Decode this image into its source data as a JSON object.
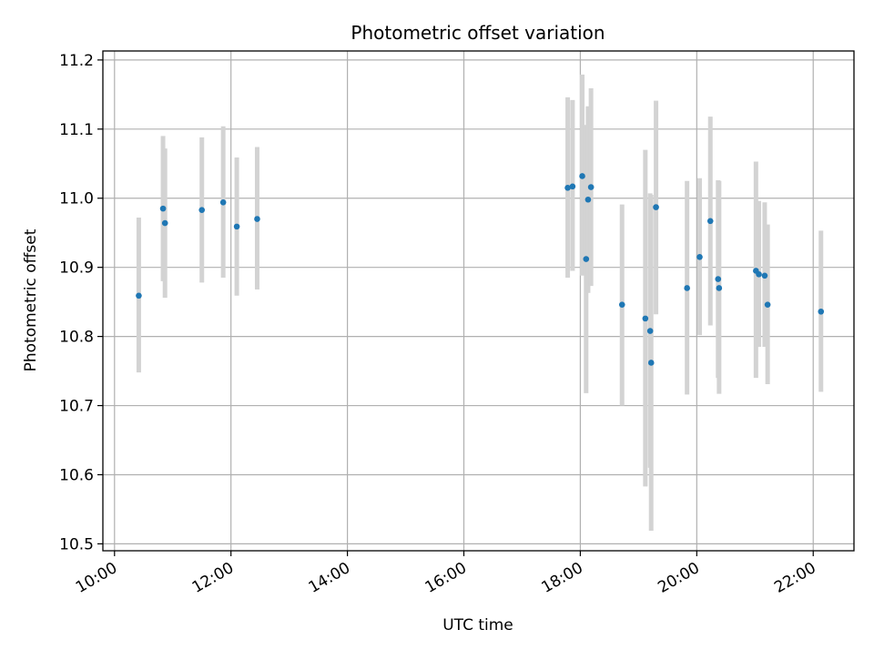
{
  "chart_data": {
    "type": "scatter",
    "title": "Photometric offset variation",
    "xlabel": "UTC time",
    "ylabel": "Photometric offset",
    "x_ticks": [
      "10:00",
      "12:00",
      "14:00",
      "16:00",
      "18:00",
      "20:00",
      "22:00"
    ],
    "x_tick_hours": [
      10,
      12,
      14,
      16,
      18,
      20,
      22
    ],
    "y_ticks": [
      "10.5",
      "10.6",
      "10.7",
      "10.8",
      "10.9",
      "11.0",
      "11.1",
      "11.2"
    ],
    "y_tick_values": [
      10.5,
      10.6,
      10.7,
      10.8,
      10.9,
      11.0,
      11.1,
      11.2
    ],
    "xlim_hours": [
      9.8,
      22.7
    ],
    "ylim": [
      10.49,
      11.213
    ],
    "grid": true,
    "colors": {
      "point": "#1f77b4",
      "error_bar": "#d3d3d3",
      "grid": "#b0b0b0"
    },
    "points": [
      {
        "t": "10:25",
        "y": 10.859,
        "lo": 10.748,
        "hi": 10.972
      },
      {
        "t": "10:50",
        "y": 10.985,
        "lo": 10.88,
        "hi": 11.09
      },
      {
        "t": "10:52",
        "y": 10.964,
        "lo": 10.856,
        "hi": 11.072
      },
      {
        "t": "11:30",
        "y": 10.983,
        "lo": 10.878,
        "hi": 11.088
      },
      {
        "t": "11:52",
        "y": 10.994,
        "lo": 10.885,
        "hi": 11.104
      },
      {
        "t": "12:06",
        "y": 10.959,
        "lo": 10.859,
        "hi": 11.059
      },
      {
        "t": "12:27",
        "y": 10.97,
        "lo": 10.868,
        "hi": 11.074
      },
      {
        "t": "17:47",
        "y": 11.015,
        "lo": 10.885,
        "hi": 11.146
      },
      {
        "t": "17:52",
        "y": 11.017,
        "lo": 10.895,
        "hi": 11.142
      },
      {
        "t": "18:02",
        "y": 11.032,
        "lo": 10.888,
        "hi": 11.179
      },
      {
        "t": "18:06",
        "y": 10.912,
        "lo": 10.718,
        "hi": 11.106
      },
      {
        "t": "18:08",
        "y": 10.998,
        "lo": 10.863,
        "hi": 11.133
      },
      {
        "t": "18:11",
        "y": 11.016,
        "lo": 10.873,
        "hi": 11.159
      },
      {
        "t": "18:43",
        "y": 10.846,
        "lo": 10.7,
        "hi": 10.991
      },
      {
        "t": "19:07",
        "y": 10.826,
        "lo": 10.583,
        "hi": 11.07
      },
      {
        "t": "19:12",
        "y": 10.808,
        "lo": 10.61,
        "hi": 11.007
      },
      {
        "t": "19:13",
        "y": 10.762,
        "lo": 10.519,
        "hi": 11.005
      },
      {
        "t": "19:18",
        "y": 10.987,
        "lo": 10.832,
        "hi": 11.141
      },
      {
        "t": "19:50",
        "y": 10.87,
        "lo": 10.716,
        "hi": 11.025
      },
      {
        "t": "20:03",
        "y": 10.915,
        "lo": 10.802,
        "hi": 11.029
      },
      {
        "t": "20:14",
        "y": 10.967,
        "lo": 10.816,
        "hi": 11.118
      },
      {
        "t": "20:22",
        "y": 10.883,
        "lo": 10.74,
        "hi": 11.026
      },
      {
        "t": "20:23",
        "y": 10.87,
        "lo": 10.717,
        "hi": 11.025
      },
      {
        "t": "21:01",
        "y": 10.895,
        "lo": 10.74,
        "hi": 11.053
      },
      {
        "t": "21:04",
        "y": 10.89,
        "lo": 10.785,
        "hi": 10.996
      },
      {
        "t": "21:10",
        "y": 10.888,
        "lo": 10.785,
        "hi": 10.994
      },
      {
        "t": "21:13",
        "y": 10.846,
        "lo": 10.731,
        "hi": 10.962
      },
      {
        "t": "22:08",
        "y": 10.836,
        "lo": 10.72,
        "hi": 10.953
      }
    ]
  }
}
